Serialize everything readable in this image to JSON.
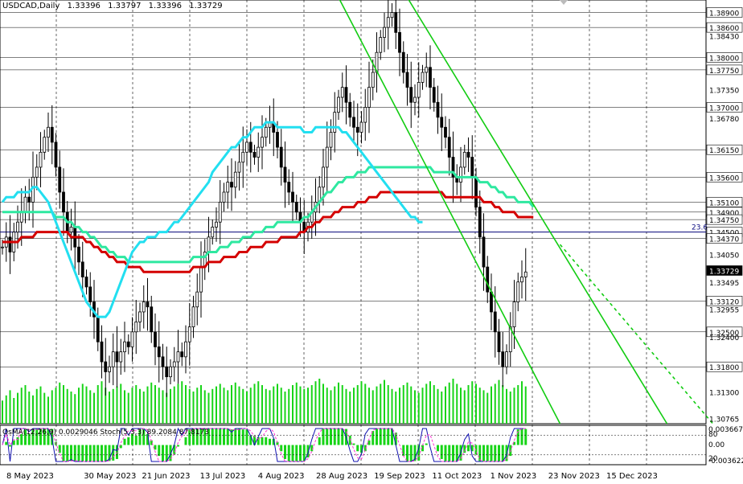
{
  "header": {
    "symbol": "USDCAD,Daily",
    "open": "1.33396",
    "high": "1.33797",
    "low": "1.33396",
    "close": "1.33729"
  },
  "indicator_header": "OsMA(12,26,9) 0.0029046  Stoch(5,3,3) 89.2084 87.8173",
  "colors": {
    "ema_red": "#d40000",
    "ema_green": "#2ee8a0",
    "ema_cyan": "#22dff0",
    "channel": "#12cc12",
    "volume": "#17d417",
    "candles": "#000000",
    "osma": "#17d417",
    "stoch_main": "#1010b0",
    "stoch_signal": "#ff30d0"
  },
  "chart_data": {
    "type": "candlestick",
    "ylim": [
      1.3066,
      1.3915
    ],
    "price_labels": [
      "1.38900",
      "1.38600",
      "1.38430",
      "1.38000",
      "1.37750",
      "1.37350",
      "1.37000",
      "1.36780",
      "1.36150",
      "1.35600",
      "1.35100",
      "1.34900",
      "1.34750",
      "1.34500",
      "1.34370",
      "1.34050",
      "1.33729",
      "1.33495",
      "1.33120",
      "1.32955",
      "1.32500",
      "1.32400",
      "1.31800",
      "1.31300",
      "1.30765"
    ],
    "level_lines": [
      1.389,
      1.386,
      1.38,
      1.3775,
      1.37,
      1.3615,
      1.356,
      1.351,
      1.349,
      1.3475,
      1.345,
      1.3437,
      1.3312,
      1.325,
      1.318
    ],
    "fib_label": "23.6",
    "fib_level": 1.345,
    "current_price": "1.33729",
    "x_labels": [
      "8 May 2023",
      "30 May 2023",
      "21 Jun 2023",
      "13 Jul 2023",
      "4 Aug 2023",
      "28 Aug 2023",
      "19 Sep 2023",
      "11 Oct 2023",
      "1 Nov 2023",
      "23 Nov 2023",
      "15 Dec 2023"
    ],
    "series": [
      {
        "name": "close",
        "values": [
          1.342,
          1.344,
          1.341,
          1.345,
          1.347,
          1.349,
          1.352,
          1.351,
          1.356,
          1.358,
          1.361,
          1.364,
          1.366,
          1.363,
          1.358,
          1.353,
          1.349,
          1.345,
          1.346,
          1.342,
          1.339,
          1.336,
          1.334,
          1.331,
          1.328,
          1.323,
          1.319,
          1.317,
          1.318,
          1.321,
          1.319,
          1.321,
          1.323,
          1.322,
          1.325,
          1.327,
          1.329,
          1.331,
          1.33,
          1.325,
          1.322,
          1.32,
          1.318,
          1.316,
          1.318,
          1.319,
          1.321,
          1.32,
          1.323,
          1.326,
          1.33,
          1.333,
          1.338,
          1.341,
          1.344,
          1.346,
          1.347,
          1.351,
          1.353,
          1.355,
          1.354,
          1.357,
          1.359,
          1.361,
          1.363,
          1.361,
          1.36,
          1.362,
          1.364,
          1.366,
          1.367,
          1.365,
          1.362,
          1.358,
          1.355,
          1.353,
          1.351,
          1.349,
          1.347,
          1.345,
          1.347,
          1.349,
          1.351,
          1.354,
          1.358,
          1.362,
          1.365,
          1.369,
          1.372,
          1.374,
          1.371,
          1.368,
          1.366,
          1.365,
          1.367,
          1.37,
          1.374,
          1.377,
          1.381,
          1.384,
          1.386,
          1.388,
          1.389,
          1.385,
          1.381,
          1.377,
          1.374,
          1.371,
          1.372,
          1.375,
          1.377,
          1.378,
          1.374,
          1.371,
          1.368,
          1.366,
          1.364,
          1.36,
          1.356,
          1.355,
          1.358,
          1.361,
          1.36,
          1.356,
          1.35,
          1.344,
          1.338,
          1.333,
          1.329,
          1.325,
          1.321,
          1.318,
          1.321,
          1.326,
          1.331,
          1.335,
          1.336,
          1.337
        ]
      },
      {
        "name": "ema_red",
        "values": [
          1.343,
          1.343,
          1.343,
          1.343,
          1.343,
          1.344,
          1.344,
          1.344,
          1.344,
          1.345,
          1.345,
          1.345,
          1.345,
          1.345,
          1.345,
          1.345,
          1.345,
          1.345,
          1.344,
          1.344,
          1.344,
          1.344,
          1.343,
          1.343,
          1.342,
          1.342,
          1.341,
          1.341,
          1.34,
          1.34,
          1.339,
          1.339,
          1.339,
          1.338,
          1.338,
          1.338,
          1.338,
          1.337,
          1.337,
          1.337,
          1.337,
          1.337,
          1.337,
          1.337,
          1.337,
          1.337,
          1.337,
          1.337,
          1.337,
          1.337,
          1.338,
          1.338,
          1.338,
          1.338,
          1.339,
          1.339,
          1.339,
          1.339,
          1.34,
          1.34,
          1.34,
          1.34,
          1.341,
          1.341,
          1.341,
          1.342,
          1.342,
          1.342,
          1.342,
          1.343,
          1.343,
          1.343,
          1.343,
          1.344,
          1.344,
          1.344,
          1.344,
          1.344,
          1.345,
          1.345,
          1.346,
          1.346,
          1.347,
          1.347,
          1.348,
          1.348,
          1.348,
          1.349,
          1.349,
          1.35,
          1.35,
          1.35,
          1.35,
          1.351,
          1.351,
          1.351,
          1.352,
          1.352,
          1.352,
          1.353,
          1.353,
          1.353,
          1.353,
          1.353,
          1.353,
          1.353,
          1.353,
          1.353,
          1.353,
          1.353,
          1.353,
          1.353,
          1.353,
          1.353,
          1.353,
          1.353,
          1.352,
          1.352,
          1.352,
          1.352,
          1.352,
          1.352,
          1.352,
          1.352,
          1.352,
          1.352,
          1.351,
          1.351,
          1.351,
          1.35,
          1.35,
          1.349,
          1.349,
          1.349,
          1.349,
          1.348,
          1.348,
          1.348,
          1.348,
          1.348
        ]
      },
      {
        "name": "ema_green",
        "values": [
          1.349,
          1.349,
          1.349,
          1.349,
          1.349,
          1.349,
          1.349,
          1.349,
          1.349,
          1.349,
          1.349,
          1.349,
          1.349,
          1.349,
          1.348,
          1.348,
          1.348,
          1.347,
          1.347,
          1.346,
          1.346,
          1.345,
          1.345,
          1.344,
          1.344,
          1.343,
          1.342,
          1.342,
          1.341,
          1.341,
          1.34,
          1.34,
          1.34,
          1.339,
          1.339,
          1.339,
          1.339,
          1.339,
          1.339,
          1.339,
          1.339,
          1.339,
          1.339,
          1.339,
          1.339,
          1.339,
          1.339,
          1.339,
          1.339,
          1.339,
          1.34,
          1.34,
          1.34,
          1.34,
          1.341,
          1.341,
          1.341,
          1.342,
          1.342,
          1.342,
          1.343,
          1.343,
          1.343,
          1.344,
          1.344,
          1.344,
          1.345,
          1.345,
          1.345,
          1.346,
          1.346,
          1.346,
          1.347,
          1.347,
          1.347,
          1.347,
          1.347,
          1.347,
          1.347,
          1.348,
          1.348,
          1.349,
          1.35,
          1.351,
          1.352,
          1.353,
          1.353,
          1.354,
          1.355,
          1.355,
          1.356,
          1.356,
          1.356,
          1.357,
          1.357,
          1.357,
          1.358,
          1.358,
          1.358,
          1.358,
          1.358,
          1.358,
          1.358,
          1.358,
          1.358,
          1.358,
          1.358,
          1.358,
          1.358,
          1.358,
          1.358,
          1.358,
          1.358,
          1.357,
          1.357,
          1.357,
          1.357,
          1.357,
          1.357,
          1.356,
          1.356,
          1.356,
          1.356,
          1.356,
          1.356,
          1.355,
          1.355,
          1.355,
          1.354,
          1.354,
          1.353,
          1.353,
          1.352,
          1.352,
          1.352,
          1.351,
          1.351,
          1.351,
          1.351,
          1.35
        ]
      },
      {
        "name": "ema_cyan",
        "values": [
          1.351,
          1.352,
          1.352,
          1.352,
          1.353,
          1.353,
          1.353,
          1.353,
          1.354,
          1.354,
          1.353,
          1.352,
          1.351,
          1.349,
          1.347,
          1.345,
          1.343,
          1.341,
          1.339,
          1.337,
          1.335,
          1.333,
          1.331,
          1.33,
          1.329,
          1.328,
          1.328,
          1.328,
          1.329,
          1.331,
          1.333,
          1.335,
          1.337,
          1.339,
          1.341,
          1.342,
          1.343,
          1.343,
          1.344,
          1.344,
          1.344,
          1.345,
          1.345,
          1.345,
          1.346,
          1.347,
          1.347,
          1.348,
          1.349,
          1.35,
          1.351,
          1.352,
          1.353,
          1.354,
          1.355,
          1.357,
          1.358,
          1.359,
          1.36,
          1.361,
          1.362,
          1.362,
          1.363,
          1.364,
          1.364,
          1.365,
          1.366,
          1.366,
          1.366,
          1.367,
          1.367,
          1.367,
          1.366,
          1.366,
          1.366,
          1.366,
          1.366,
          1.366,
          1.366,
          1.365,
          1.365,
          1.365,
          1.366,
          1.366,
          1.366,
          1.366,
          1.366,
          1.366,
          1.366,
          1.365,
          1.365,
          1.364,
          1.363,
          1.362,
          1.361,
          1.36,
          1.359,
          1.358,
          1.357,
          1.356,
          1.355,
          1.354,
          1.353,
          1.352,
          1.351,
          1.35,
          1.349,
          1.348,
          1.348,
          1.347,
          1.347
        ]
      }
    ],
    "channel_lines": [
      {
        "from": [
          88,
          1.392
        ],
        "to": [
          146,
          1.3066
        ]
      },
      {
        "from": [
          106,
          1.392
        ],
        "to": [
          174,
          1.3066
        ]
      },
      {
        "from": [
          146,
          1.3425
        ],
        "to": [
          186,
          1.3066
        ],
        "dashed": true
      }
    ],
    "sub_chart": {
      "labels_right": [
        "0.003667",
        "80",
        "0.00",
        "20",
        "-0.003622"
      ],
      "levels": [
        80,
        20
      ]
    }
  }
}
